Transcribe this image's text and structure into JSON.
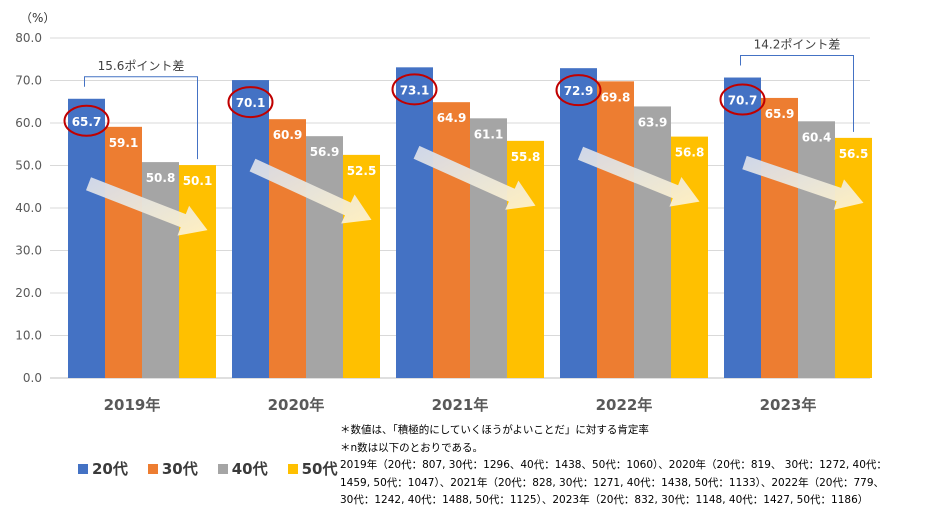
{
  "chart_data": {
    "type": "bar",
    "unit_label": "（%）",
    "categories": [
      "2019年",
      "2020年",
      "2021年",
      "2022年",
      "2023年"
    ],
    "series": [
      {
        "name": "20代",
        "color": "#4472C4",
        "values": [
          65.7,
          70.1,
          73.1,
          72.9,
          70.7
        ]
      },
      {
        "name": "30代",
        "color": "#ED7D31",
        "values": [
          59.1,
          60.9,
          64.9,
          69.8,
          65.9
        ]
      },
      {
        "name": "40代",
        "color": "#A5A5A5",
        "values": [
          50.8,
          56.9,
          61.1,
          63.9,
          60.4
        ]
      },
      {
        "name": "50代",
        "color": "#FFC000",
        "values": [
          50.1,
          52.5,
          55.8,
          56.8,
          56.5
        ]
      }
    ],
    "ylim": [
      0,
      80
    ],
    "yticks": [
      "0.0",
      "10.0",
      "20.0",
      "30.0",
      "40.0",
      "50.0",
      "60.0",
      "70.0",
      "80.0"
    ],
    "grid": true,
    "legend_position": "bottom-left",
    "annotations": [
      {
        "text": "15.6ポイント差",
        "category": "2019年"
      },
      {
        "text": "14.2ポイント差",
        "category": "2023年"
      }
    ],
    "highlight_color": "#C00000",
    "arrow_color": "#DDE3F0"
  },
  "notes": [
    "＊数値は、「積極的にしていくほうがよいことだ」に対する肯定率",
    "＊n数は以下のとおりである。",
    "2019年（20代：807, 30代：1296、40代：1438、50代：1060）、2020年（20代：819、 30代：1272, 40代：",
    "1459, 50代：1047）、2021年（20代：828, 30代：1271, 40代：1438, 50代：1133）、2022年（20代：779、",
    "30代：1242, 40代：1488, 50代：1125）、2023年（20代：832, 30代：1148, 40代：1427, 50代：1186）"
  ]
}
